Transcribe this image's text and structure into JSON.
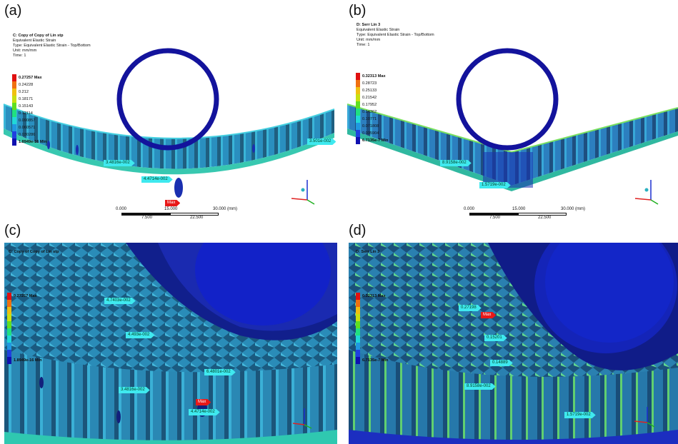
{
  "panels": {
    "a": {
      "letter": "(a)",
      "header": [
        "C: Copy of Copy of Lin stp",
        "Equivalent Elastic Strain",
        "Type: Equivalent Elastic Strain - Top/Bottom",
        "Unit: mm/mm",
        "Time: 1"
      ],
      "legend": [
        "0.27257 Max",
        "0.24228",
        "0.212",
        "0.18171",
        "0.15143",
        "0.12114",
        "0.090857",
        "0.060571",
        "0.030286",
        "1.8949e-16 Min"
      ],
      "probes": [
        "3.4816e-002",
        "4.4714e-002",
        "3.501e-002",
        "Max"
      ],
      "scale": [
        "0.000",
        "15.000",
        "30.000 (mm)",
        "7.500",
        "22.500"
      ]
    },
    "b": {
      "letter": "(b)",
      "header": [
        "D: Serr Lin 3",
        "Equivalent Elastic Strain",
        "Type: Equivalent Elastic Strain - Top/Bottom",
        "Unit: mm/mm",
        "Time: 1"
      ],
      "legend": [
        "0.32313 Max",
        "0.28723",
        "0.25133",
        "0.21542",
        "0.17952",
        "0.14362",
        "0.10771",
        "0.071808",
        "0.035904",
        "6.7135e-7 Min"
      ],
      "probes": [
        "8.9158e-002",
        "1.5719e-002"
      ],
      "scale": [
        "0.000",
        "15.000",
        "30.000 (mm)",
        "7.500",
        "22.500"
      ]
    },
    "c": {
      "letter": "(c)",
      "header": [
        "C: Copy of Copy of Lin stp"
      ],
      "legend_top": "0.27257 Max",
      "legend_bot": "1.8949e-16 Min",
      "probes": [
        "4.7403e-002",
        "4.493e-002",
        "6.4801e-002",
        "3.4816e-002",
        "4.4714e-002",
        "Max"
      ]
    },
    "d": {
      "letter": "(d)",
      "header": [
        "D: Serr Lin 3"
      ],
      "legend_top": "0.32313 Max",
      "legend_bot": "6.7135e-7 Min",
      "probes": [
        "0.27198",
        "Max",
        "0.15201",
        "0.14889",
        "8.9158e-002",
        "1.5719e-002"
      ]
    }
  },
  "colors": {
    "background": "#ffffff",
    "ring": "#13139c",
    "strain_low": "#1478b4",
    "probe": "#3fe9ef",
    "probe_max": "#e81818"
  },
  "legend_colors": [
    "#e01010",
    "#f07010",
    "#f0c010",
    "#c8e010",
    "#60e020",
    "#20e080",
    "#20d8d8",
    "#2098e0",
    "#2040e0",
    "#1010b0"
  ]
}
